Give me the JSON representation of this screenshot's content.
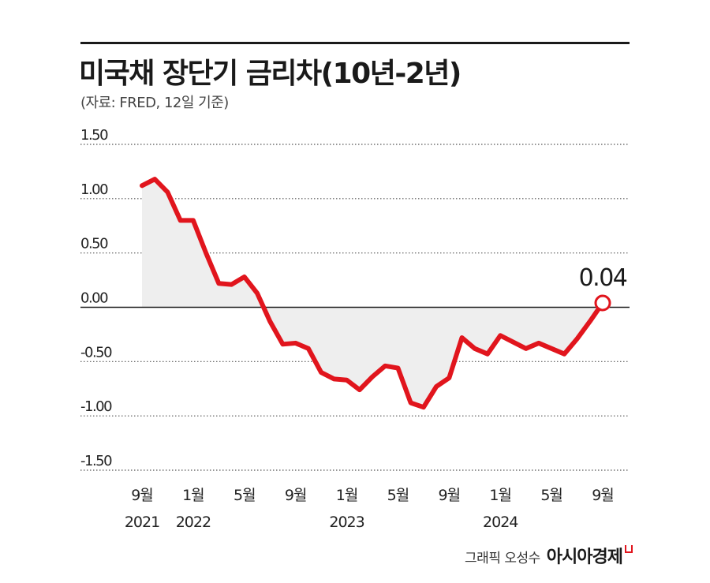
{
  "header": {
    "title": "미국채 장단기 금리차(10년-2년)",
    "subtitle": "(자료: FRED, 12일 기준)"
  },
  "footer": {
    "graphic_credit": "그래픽 오성수",
    "brand": "아시아경제"
  },
  "colors": {
    "line": "#e1151d",
    "area": "#eeeeee",
    "grid": "#555555",
    "zero_line": "#1a1a1a"
  },
  "chart_data": {
    "type": "line",
    "title": "미국채 장단기 금리차(10년-2년)",
    "subtitle": "(자료: FRED, 12일 기준)",
    "ylim": [
      -1.5,
      1.5
    ],
    "yticks": [
      "1.50",
      "1.00",
      "0.50",
      "0.00",
      "-0.50",
      "-1.00",
      "-1.50"
    ],
    "ytick_values": [
      1.5,
      1.0,
      0.5,
      0.0,
      -0.5,
      -1.0,
      -1.5
    ],
    "grid": "dotted horizontal",
    "area_fill": true,
    "xticks": [
      {
        "index": 0,
        "month": "9월",
        "year": "2021"
      },
      {
        "index": 4,
        "month": "1월",
        "year": "2022"
      },
      {
        "index": 8,
        "month": "5월",
        "year": ""
      },
      {
        "index": 12,
        "month": "9월",
        "year": ""
      },
      {
        "index": 16,
        "month": "1월",
        "year": "2023"
      },
      {
        "index": 20,
        "month": "5월",
        "year": ""
      },
      {
        "index": 24,
        "month": "9월",
        "year": ""
      },
      {
        "index": 28,
        "month": "1월",
        "year": "2024"
      },
      {
        "index": 32,
        "month": "5월",
        "year": ""
      },
      {
        "index": 36,
        "month": "9월",
        "year": ""
      }
    ],
    "series": [
      {
        "name": "",
        "values": [
          1.12,
          1.18,
          1.06,
          0.8,
          0.8,
          0.5,
          0.22,
          0.21,
          0.28,
          0.13,
          -0.13,
          -0.34,
          -0.33,
          -0.38,
          -0.6,
          -0.66,
          -0.67,
          -0.76,
          -0.64,
          -0.54,
          -0.56,
          -0.88,
          -0.92,
          -0.73,
          -0.65,
          -0.28,
          -0.38,
          -0.43,
          -0.26,
          -0.32,
          -0.38,
          -0.33,
          -0.38,
          -0.43,
          -0.29,
          -0.13,
          0.04
        ]
      }
    ],
    "annotation": {
      "label": "0.04",
      "value": 0.04,
      "index": 36
    }
  }
}
